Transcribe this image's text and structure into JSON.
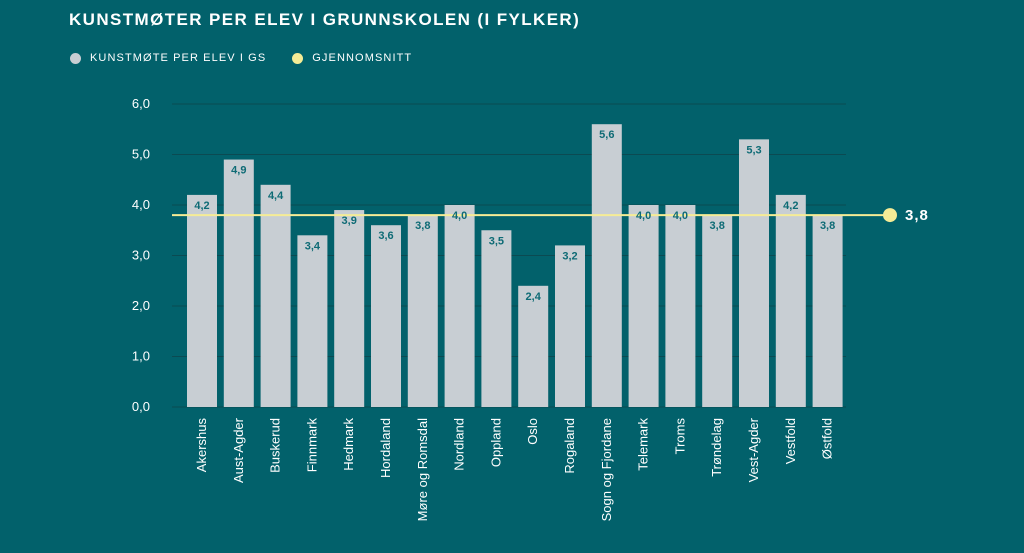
{
  "colors": {
    "background": "#02616b",
    "bar": "#c8ced3",
    "average": "#f5ec96",
    "data_label": "#0e6b75",
    "gridline": "#0b4a52"
  },
  "chart_data": {
    "type": "bar",
    "title": "KUNSTMØTER PER ELEV I GRUNNSKOLEN (I FYLKER)",
    "legend": [
      "KUNSTMØTE PER ELEV I GS",
      "GJENNOMSNITT"
    ],
    "categories": [
      "Akershus",
      "Aust-Agder",
      "Buskerud",
      "Finnmark",
      "Hedmark",
      "Hordaland",
      "Møre og Romsdal",
      "Nordland",
      "Oppland",
      "Oslo",
      "Rogaland",
      "Sogn og Fjordane",
      "Telemark",
      "Troms",
      "Trøndelag",
      "Vest-Agder",
      "Vestfold",
      "Østfold"
    ],
    "series": [
      {
        "name": "KUNSTMØTE PER ELEV I GS",
        "values": [
          4.2,
          4.9,
          4.4,
          3.4,
          3.9,
          3.6,
          3.8,
          4.0,
          3.5,
          2.4,
          3.2,
          5.6,
          4.0,
          4.0,
          3.8,
          5.3,
          4.2,
          3.8
        ],
        "labels": [
          "4,2",
          "4,9",
          "4,4",
          "3,4",
          "3,9",
          "3,6",
          "3,8",
          "4,0",
          "3,5",
          "2,4",
          "3,2",
          "5,6",
          "4,0",
          "4,0",
          "3,8",
          "5,3",
          "4,2",
          "3,8"
        ]
      }
    ],
    "average": {
      "name": "GJENNOMSNITT",
      "value": 3.8,
      "label": "3,8"
    },
    "ylim": [
      0,
      6
    ],
    "yticks": [
      0,
      1,
      2,
      3,
      4,
      5,
      6
    ],
    "ytick_labels": [
      "0,0",
      "1,0",
      "2,0",
      "3,0",
      "4,0",
      "5,0",
      "6,0"
    ],
    "grid": true,
    "legend_position": "top-left"
  }
}
